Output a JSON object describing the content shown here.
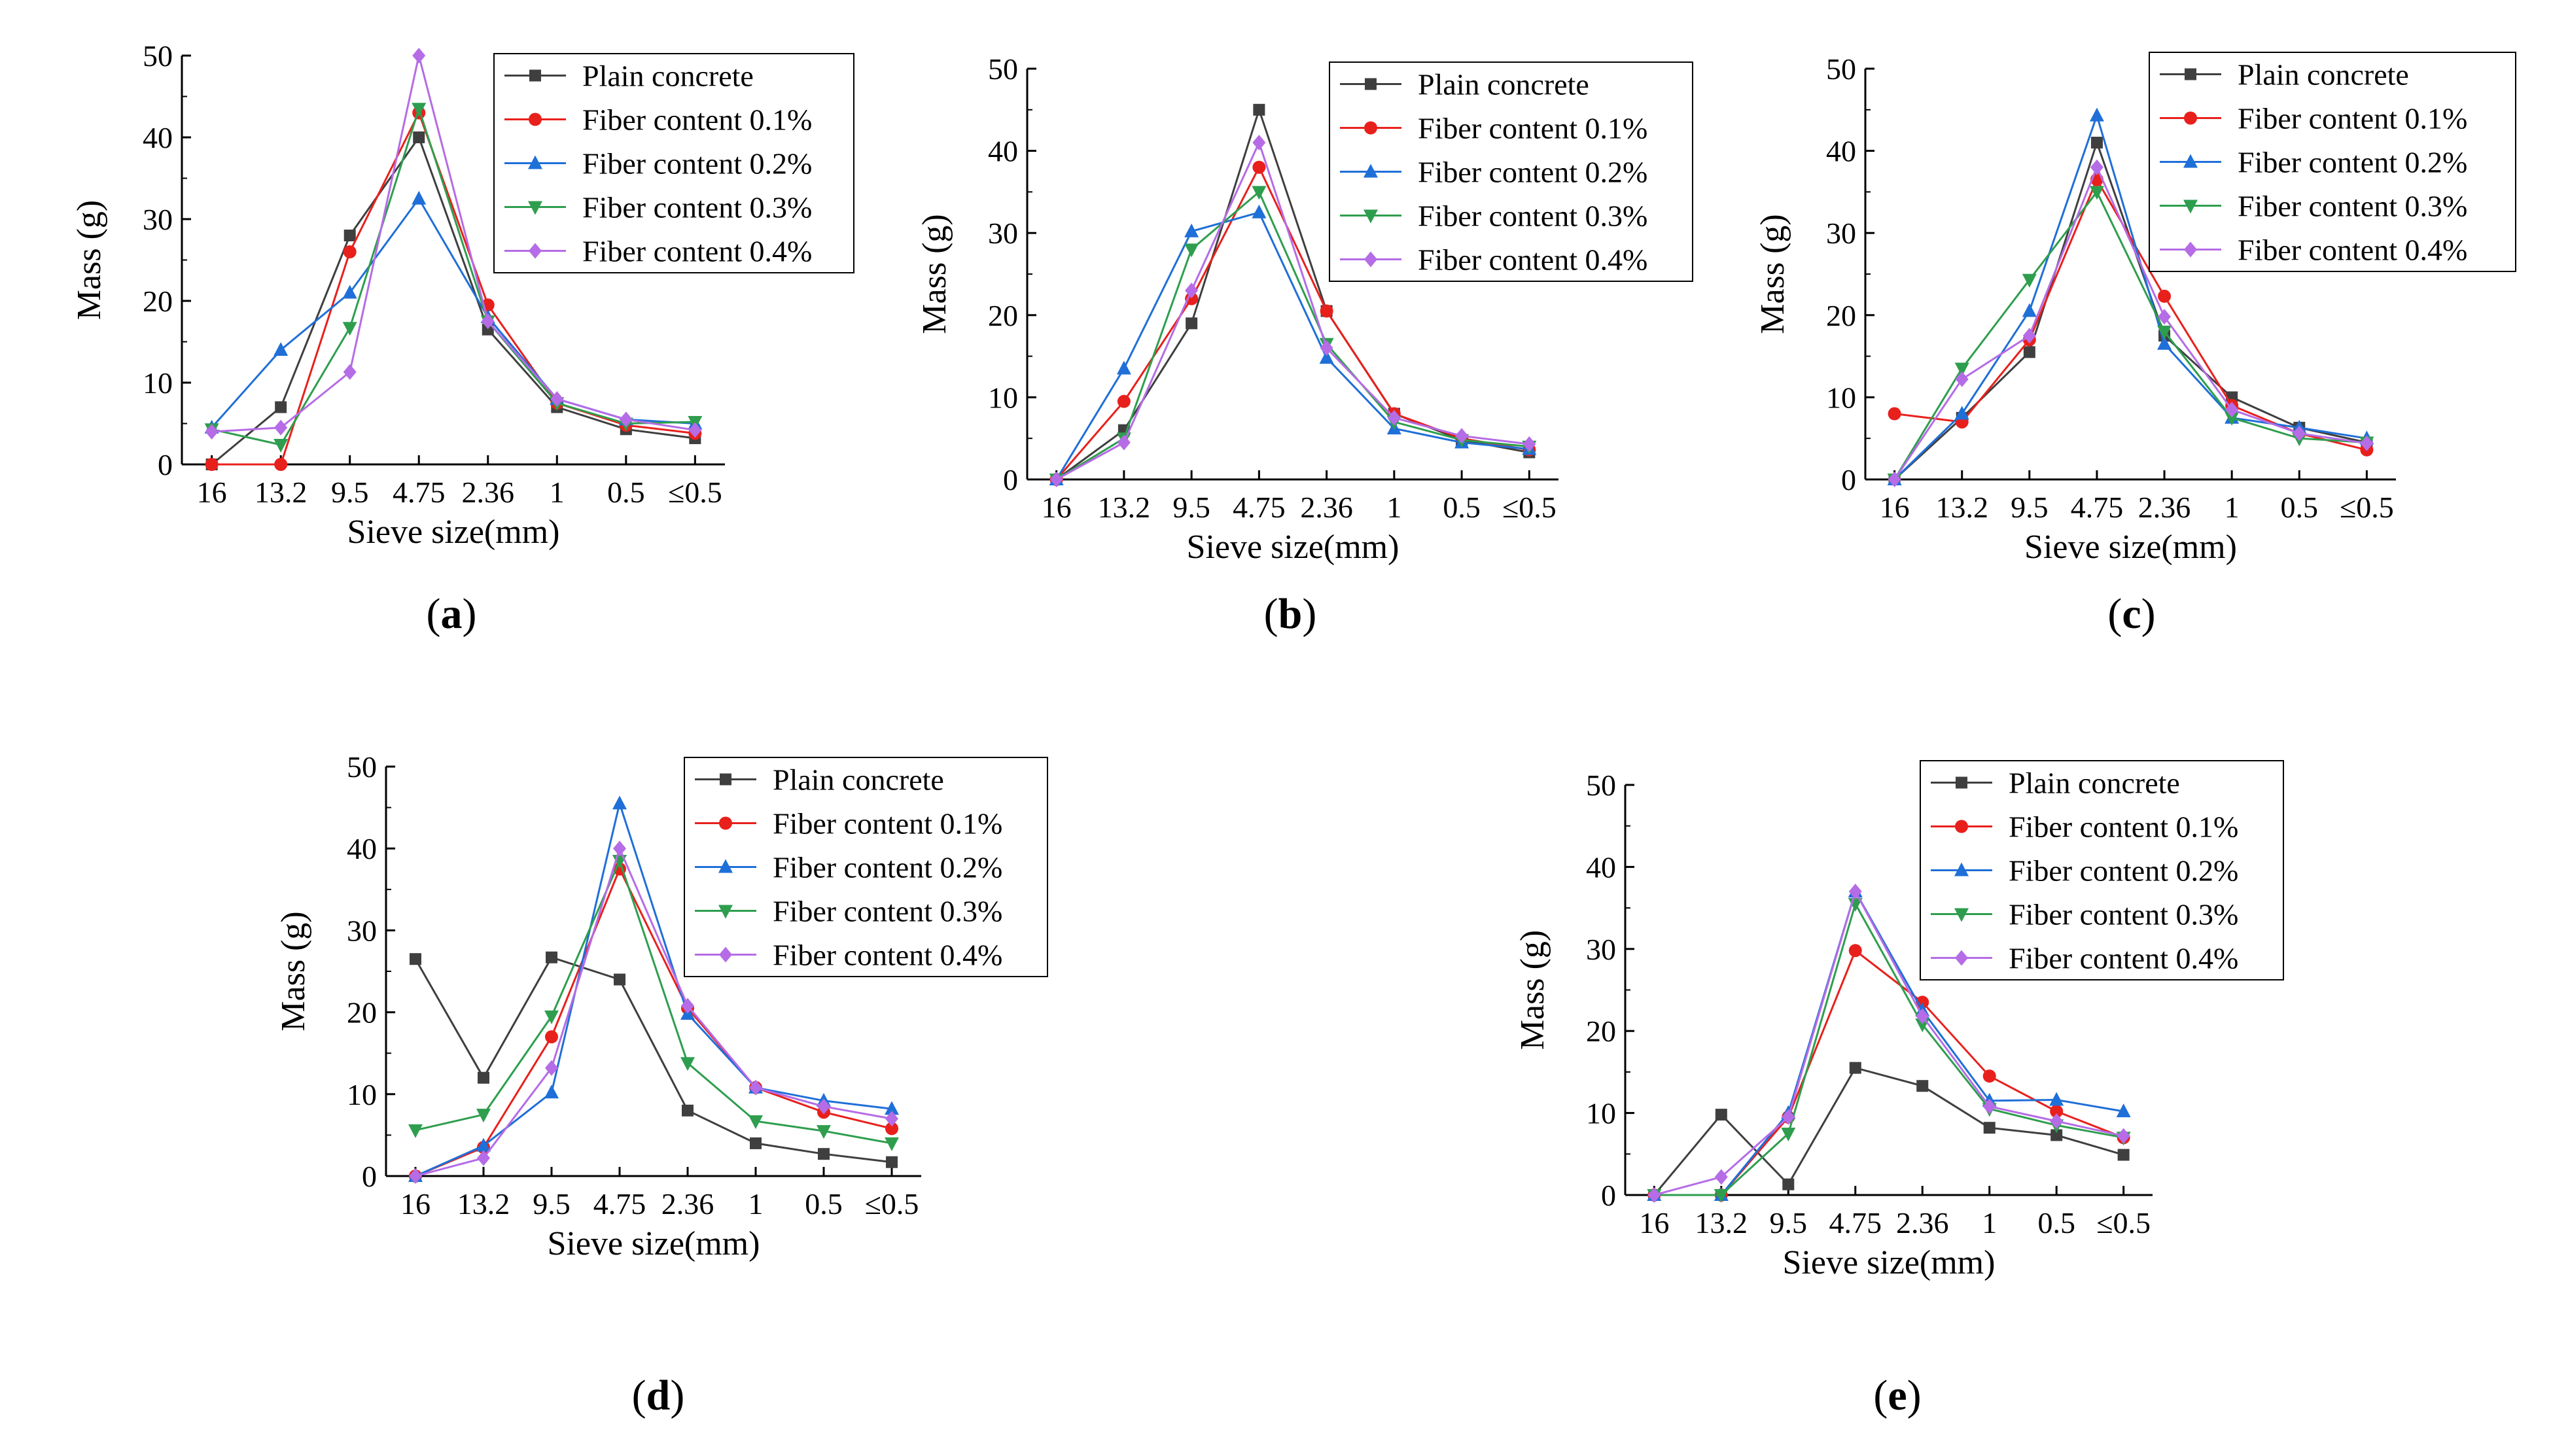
{
  "series_styles": [
    {
      "name": "Plain concrete",
      "color": "#3f3f3f",
      "marker": "square"
    },
    {
      "name": "Fiber content 0.1%",
      "color": "#e8201c",
      "marker": "circle"
    },
    {
      "name": "Fiber content 0.2%",
      "color": "#1f6fd8",
      "marker": "triangle-up"
    },
    {
      "name": "Fiber content 0.3%",
      "color": "#2e9e4e",
      "marker": "triangle-down"
    },
    {
      "name": "Fiber content 0.4%",
      "color": "#b56ce6",
      "marker": "diamond"
    }
  ],
  "chart_data": [
    {
      "panel": "a",
      "type": "line",
      "xlabel": "Sieve size(mm)",
      "ylabel": "Mass  (g)",
      "categories": [
        "16",
        "13.2",
        "9.5",
        "4.75",
        "2.36",
        "1",
        "0.5",
        "≤0.5"
      ],
      "ylim": [
        0,
        50
      ],
      "yticks": [
        "0",
        "10",
        "20",
        "30",
        "40",
        "50"
      ],
      "legend_position": "top-right",
      "series": [
        {
          "name": "Plain concrete",
          "values": [
            0,
            7,
            28,
            40,
            16.5,
            7,
            4.3,
            3.2
          ]
        },
        {
          "name": "Fiber content 0.1%",
          "values": [
            0,
            0,
            26,
            43,
            19.5,
            7.5,
            4.8,
            3.8
          ]
        },
        {
          "name": "Fiber content 0.2%",
          "values": [
            4.5,
            14,
            21,
            32.5,
            18,
            8,
            5.5,
            5
          ]
        },
        {
          "name": "Fiber content 0.3%",
          "values": [
            4.3,
            2.4,
            16.7,
            43.5,
            17.5,
            7.5,
            5,
            5.2
          ]
        },
        {
          "name": "Fiber content 0.4%",
          "values": [
            4,
            4.5,
            11.3,
            50,
            17.5,
            8,
            5.5,
            4.2
          ]
        }
      ]
    },
    {
      "panel": "b",
      "type": "line",
      "xlabel": "Sieve size(mm)",
      "ylabel": "Mass (g)",
      "categories": [
        "16",
        "13.2",
        "9.5",
        "4.75",
        "2.36",
        "1",
        "0.5",
        "≤0.5"
      ],
      "ylim": [
        0,
        50
      ],
      "yticks": [
        "0",
        "10",
        "20",
        "30",
        "40",
        "50"
      ],
      "legend_position": "top-right",
      "series": [
        {
          "name": "Plain concrete",
          "values": [
            0,
            6,
            19,
            45,
            20.5,
            8,
            4.8,
            3.3
          ]
        },
        {
          "name": "Fiber content 0.1%",
          "values": [
            0,
            9.5,
            22,
            38,
            20.5,
            8,
            5,
            3.6
          ]
        },
        {
          "name": "Fiber content 0.2%",
          "values": [
            0,
            13.5,
            30.2,
            32.5,
            14.8,
            6.2,
            4.5,
            3.7
          ]
        },
        {
          "name": "Fiber content 0.3%",
          "values": [
            0,
            5,
            28,
            35,
            16.5,
            7,
            4.8,
            4
          ]
        },
        {
          "name": "Fiber content 0.4%",
          "values": [
            0,
            4.5,
            23,
            41,
            16,
            7.5,
            5.3,
            4.3
          ]
        }
      ]
    },
    {
      "panel": "c",
      "type": "line",
      "xlabel": "Sieve size(mm)",
      "ylabel": "Mass (g)",
      "categories": [
        "16",
        "13.2",
        "9.5",
        "4.75",
        "2.36",
        "1",
        "0.5",
        "≤0.5"
      ],
      "ylim": [
        0,
        50
      ],
      "yticks": [
        "0",
        "10",
        "20",
        "30",
        "40",
        "50"
      ],
      "legend_position": "top-right",
      "series": [
        {
          "name": "Plain concrete",
          "values": [
            0,
            7.5,
            15.5,
            41,
            17.5,
            10,
            6.3,
            4.5
          ]
        },
        {
          "name": "Fiber content 0.1%",
          "values": [
            8,
            7,
            17,
            36.5,
            22.3,
            9,
            5.6,
            3.6
          ]
        },
        {
          "name": "Fiber content 0.2%",
          "values": [
            0,
            8,
            20.5,
            44.3,
            16.5,
            7.5,
            6.3,
            5
          ]
        },
        {
          "name": "Fiber content 0.3%",
          "values": [
            0,
            13.5,
            24.3,
            35,
            18,
            7.5,
            5,
            4.5
          ]
        },
        {
          "name": "Fiber content 0.4%",
          "values": [
            0,
            12.2,
            17.5,
            38,
            19.8,
            8.5,
            5.6,
            4.4
          ]
        }
      ]
    },
    {
      "panel": "d",
      "type": "line",
      "xlabel": "Sieve size(mm)",
      "ylabel": "Mass (g)",
      "categories": [
        "16",
        "13.2",
        "9.5",
        "4.75",
        "2.36",
        "1",
        "0.5",
        "≤0.5"
      ],
      "ylim": [
        0,
        50
      ],
      "yticks": [
        "0",
        "10",
        "20",
        "30",
        "40",
        "50"
      ],
      "legend_position": "top-right",
      "series": [
        {
          "name": "Plain concrete",
          "values": [
            26.5,
            12,
            26.7,
            24,
            8,
            4,
            2.7,
            1.7
          ]
        },
        {
          "name": "Fiber content 0.1%",
          "values": [
            0,
            3.5,
            17,
            37.5,
            20.5,
            10.8,
            7.8,
            5.8
          ]
        },
        {
          "name": "Fiber content 0.2%",
          "values": [
            0,
            3.7,
            10.2,
            45.5,
            19.8,
            10.8,
            9.2,
            8.2
          ]
        },
        {
          "name": "Fiber content 0.3%",
          "values": [
            5.6,
            7.5,
            19.5,
            38.5,
            13.8,
            6.7,
            5.5,
            4
          ]
        },
        {
          "name": "Fiber content 0.4%",
          "values": [
            0,
            2.2,
            13.2,
            40,
            20.8,
            10.8,
            8.5,
            7
          ]
        }
      ]
    },
    {
      "panel": "e",
      "type": "line",
      "xlabel": "Sieve size(mm)",
      "ylabel": "Mass (g)",
      "categories": [
        "16",
        "13.2",
        "9.5",
        "4.75",
        "2.36",
        "1",
        "0.5",
        "≤0.5"
      ],
      "ylim": [
        0,
        50
      ],
      "yticks": [
        "0",
        "10",
        "20",
        "30",
        "40",
        "50"
      ],
      "legend_position": "top-right",
      "series": [
        {
          "name": "Plain concrete",
          "values": [
            0,
            9.8,
            1.3,
            15.5,
            13.3,
            8.2,
            7.3,
            4.9
          ]
        },
        {
          "name": "Fiber content 0.1%",
          "values": [
            0,
            0,
            9.5,
            29.8,
            23.5,
            14.5,
            10.2,
            7
          ]
        },
        {
          "name": "Fiber content 0.2%",
          "values": [
            0,
            0,
            10,
            37,
            22.5,
            11.5,
            11.6,
            10.2
          ]
        },
        {
          "name": "Fiber content 0.3%",
          "values": [
            0,
            0,
            7.5,
            35.5,
            20.8,
            10.5,
            8.5,
            7
          ]
        },
        {
          "name": "Fiber content 0.4%",
          "values": [
            0,
            2.2,
            9.5,
            37,
            21.8,
            10.8,
            9,
            7.2
          ]
        }
      ]
    }
  ]
}
